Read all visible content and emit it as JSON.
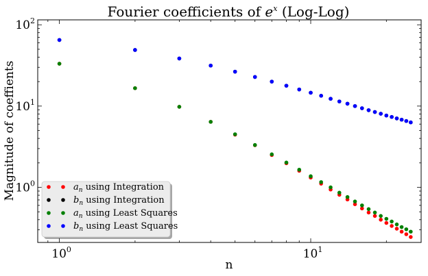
{
  "chart_data": {
    "type": "scatter",
    "title": {
      "prefix": "Fourier coefficients of ",
      "base": "e",
      "exponent": "x",
      "suffix": " (Log-Log)"
    },
    "xlabel": "n",
    "ylabel": "Magnitude of coeffients",
    "xscale": "log",
    "yscale": "log",
    "xlim": [
      0.82,
      27.5
    ],
    "ylim": [
      0.21,
      115
    ],
    "grid": false,
    "legend_position": "lower-left",
    "x_ticks": [
      {
        "value": 1,
        "base": "10",
        "exp": "0"
      },
      {
        "value": 10,
        "base": "10",
        "exp": "1"
      }
    ],
    "y_ticks": [
      {
        "value": 1,
        "base": "10",
        "exp": "0"
      },
      {
        "value": 10,
        "base": "10",
        "exp": "1"
      },
      {
        "value": 100,
        "base": "10",
        "exp": "2"
      }
    ],
    "x": [
      1,
      2,
      3,
      4,
      5,
      6,
      7,
      8,
      9,
      10,
      11,
      12,
      13,
      14,
      15,
      16,
      17,
      18,
      19,
      20,
      21,
      22,
      23,
      24,
      25
    ],
    "series": [
      {
        "name": "a_n using Integration",
        "label_symbol": "a",
        "label_sub": "n",
        "label_text": " using Integration",
        "color": "#ff0000",
        "values": [
          33.2,
          16.6,
          9.8,
          6.4,
          4.45,
          3.3,
          2.5,
          1.98,
          1.6,
          1.32,
          1.11,
          0.94,
          0.81,
          0.71,
          0.62,
          0.55,
          0.49,
          0.445,
          0.4,
          0.365,
          0.335,
          0.31,
          0.285,
          0.265,
          0.245
        ]
      },
      {
        "name": "b_n using Integration",
        "label_symbol": "b",
        "label_sub": "n",
        "label_text": " using Integration",
        "color": "#000000",
        "values": [
          65,
          49,
          38.5,
          31.5,
          26.5,
          22.8,
          20.0,
          17.8,
          16.0,
          14.6,
          13.4,
          12.3,
          11.4,
          10.7,
          10.0,
          9.4,
          8.9,
          8.45,
          8.05,
          7.65,
          7.35,
          7.05,
          6.8,
          6.55,
          6.3
        ]
      },
      {
        "name": "a_n using Least Squares",
        "label_symbol": "a",
        "label_sub": "n",
        "label_text": " using Least Squares",
        "color": "#008000",
        "values": [
          33.2,
          16.6,
          9.8,
          6.4,
          4.5,
          3.32,
          2.55,
          2.02,
          1.65,
          1.37,
          1.16,
          1.0,
          0.86,
          0.76,
          0.67,
          0.6,
          0.54,
          0.49,
          0.445,
          0.41,
          0.38,
          0.35,
          0.325,
          0.305,
          0.285
        ]
      },
      {
        "name": "b_n using Least Squares",
        "label_symbol": "b",
        "label_sub": "n",
        "label_text": " using Least Squares",
        "color": "#0000ff",
        "values": [
          65,
          49,
          38.5,
          31.5,
          26.5,
          22.8,
          20.0,
          17.8,
          16.0,
          14.6,
          13.4,
          12.3,
          11.4,
          10.7,
          10.0,
          9.4,
          8.9,
          8.45,
          8.05,
          7.65,
          7.35,
          7.05,
          6.8,
          6.55,
          6.3
        ]
      }
    ]
  }
}
